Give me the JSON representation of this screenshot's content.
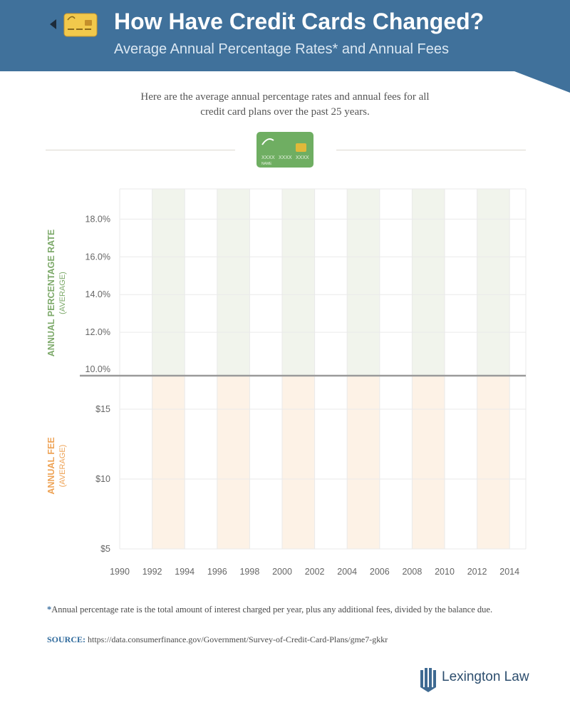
{
  "header": {
    "title": "How Have Credit Cards Changed?",
    "subtitle": "Average Annual Percentage Rates* and Annual Fees"
  },
  "intro": "Here are the average annual percentage rates and annual fees for all credit card plans over the past 25 years.",
  "icons": {
    "back": "back-arrow-icon",
    "header_card": "credit-card-icon",
    "divider_card": "credit-card-icon",
    "brand": "lexington-law-logo-icon"
  },
  "card_graphic": {
    "number_groups": [
      "XXXX",
      "XXXX",
      "XXXX"
    ],
    "name": "NAME"
  },
  "chart_data": {
    "type": "line",
    "x_ticks": [
      "1990",
      "1992",
      "1994",
      "1996",
      "1998",
      "2000",
      "2002",
      "2004",
      "2006",
      "2008",
      "2010",
      "2012",
      "2014"
    ],
    "xlim": [
      1990,
      2015
    ],
    "shaded_bands": [
      [
        1992,
        1994
      ],
      [
        1996,
        1998
      ],
      [
        2000,
        2002
      ],
      [
        2004,
        2006
      ],
      [
        2008,
        2010
      ],
      [
        2012,
        2014
      ]
    ],
    "apr_panel": {
      "ylabel": "ANNUAL PERCENTAGE RATE",
      "ylabel_sub": "(AVERAGE)",
      "y_ticks": [
        "18.0%",
        "16.0%",
        "14.0%",
        "12.0%",
        "10.0%"
      ],
      "y_values": [
        18,
        16,
        14,
        12,
        10
      ],
      "ylim": [
        9.7,
        19.6
      ],
      "series": []
    },
    "fee_panel": {
      "ylabel": "ANNUAL FEE",
      "ylabel_sub": "(AVERAGE)",
      "y_ticks": [
        "$15",
        "$10",
        "$5"
      ],
      "y_values": [
        15,
        10,
        5
      ],
      "ylim": [
        5,
        17.4
      ],
      "series": []
    },
    "grid": true
  },
  "footnote": {
    "marker": "*",
    "text": "Annual percentage rate is the total amount of interest charged per year, plus any additional fees, divided by the balance due."
  },
  "source": {
    "label": "SOURCE:",
    "url": "https://data.consumerfinance.gov/Government/Survey-of-Credit-Card-Plans/gme7-gkkr"
  },
  "brand": "Lexington Law",
  "colors": {
    "header_bg": "#40719b",
    "apr_label": "#7eaa6b",
    "fee_label": "#eea356",
    "apr_band": "#f1f4ec",
    "fee_band": "#fdf2e6",
    "card_green": "#6fae62",
    "card_gold": "#e0b93a",
    "divider": "#9a9a9a",
    "grid": "#eaeaea"
  }
}
